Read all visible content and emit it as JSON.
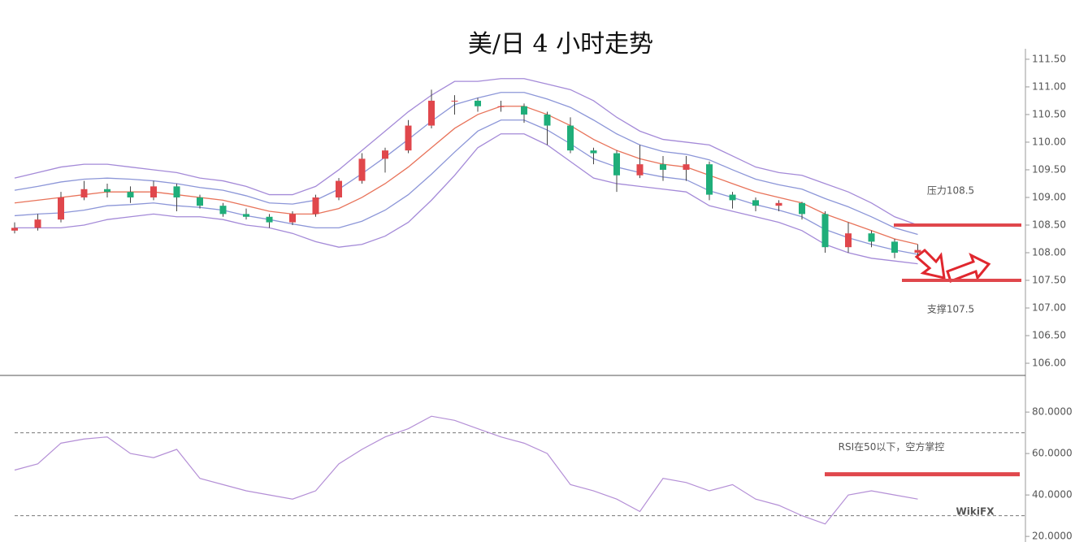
{
  "chart_data": [
    {
      "type": "candlestick",
      "title": "美/日 4 小时走势",
      "up_color": "#e0474c",
      "down_color": "#1fae7a",
      "ohlc": [
        [
          108.4,
          108.55,
          108.35,
          108.45
        ],
        [
          108.45,
          108.7,
          108.4,
          108.6
        ],
        [
          108.6,
          109.1,
          108.55,
          109.0
        ],
        [
          109.0,
          109.3,
          108.95,
          109.15
        ],
        [
          109.15,
          109.25,
          109.0,
          109.1
        ],
        [
          109.1,
          109.2,
          108.9,
          109.0
        ],
        [
          109.0,
          109.3,
          108.95,
          109.2
        ],
        [
          109.2,
          109.25,
          108.75,
          109.0
        ],
        [
          109.0,
          109.05,
          108.8,
          108.85
        ],
        [
          108.85,
          108.9,
          108.65,
          108.7
        ],
        [
          108.7,
          108.8,
          108.6,
          108.65
        ],
        [
          108.65,
          108.7,
          108.45,
          108.55
        ],
        [
          108.55,
          108.75,
          108.5,
          108.7
        ],
        [
          108.7,
          109.05,
          108.65,
          109.0
        ],
        [
          109.0,
          109.35,
          108.95,
          109.3
        ],
        [
          109.3,
          109.8,
          109.25,
          109.7
        ],
        [
          109.7,
          109.9,
          109.45,
          109.85
        ],
        [
          109.85,
          110.4,
          109.8,
          110.3
        ],
        [
          110.3,
          110.95,
          110.25,
          110.75
        ],
        [
          110.75,
          110.85,
          110.5,
          110.75
        ],
        [
          110.75,
          110.8,
          110.55,
          110.65
        ],
        [
          110.65,
          110.75,
          110.55,
          110.65
        ],
        [
          110.65,
          110.7,
          110.35,
          110.5
        ],
        [
          110.5,
          110.55,
          109.95,
          110.3
        ],
        [
          110.3,
          110.45,
          109.8,
          109.85
        ],
        [
          109.85,
          109.9,
          109.6,
          109.8
        ],
        [
          109.8,
          109.85,
          109.1,
          109.4
        ],
        [
          109.4,
          109.95,
          109.35,
          109.6
        ],
        [
          109.6,
          109.75,
          109.3,
          109.5
        ],
        [
          109.5,
          109.75,
          109.3,
          109.6
        ],
        [
          109.6,
          109.65,
          108.95,
          109.05
        ],
        [
          109.05,
          109.1,
          108.8,
          108.95
        ],
        [
          108.95,
          109.0,
          108.75,
          108.85
        ],
        [
          108.85,
          108.95,
          108.75,
          108.9
        ],
        [
          108.9,
          108.92,
          108.6,
          108.7
        ],
        [
          108.7,
          108.75,
          108.0,
          108.1
        ],
        [
          108.1,
          108.55,
          108.0,
          108.35
        ],
        [
          108.35,
          108.4,
          108.1,
          108.2
        ],
        [
          108.2,
          108.25,
          107.9,
          108.0
        ],
        [
          108.0,
          108.15,
          107.95,
          108.05
        ]
      ],
      "bands": [
        {
          "color": "#a48ad8",
          "values": [
            109.35,
            109.45,
            109.55,
            109.6,
            109.6,
            109.55,
            109.5,
            109.45,
            109.35,
            109.3,
            109.2,
            109.05,
            109.05,
            109.2,
            109.5,
            109.85,
            110.2,
            110.55,
            110.85,
            111.1,
            111.1,
            111.15,
            111.15,
            111.05,
            110.95,
            110.75,
            110.45,
            110.2,
            110.05,
            110.0,
            109.95,
            109.75,
            109.55,
            109.45,
            109.4,
            109.25,
            109.1,
            108.9,
            108.65,
            108.5
          ]
        },
        {
          "color": "#8c96d8",
          "values": [
            109.13,
            109.2,
            109.28,
            109.33,
            109.35,
            109.33,
            109.3,
            109.25,
            109.18,
            109.13,
            109.03,
            108.9,
            108.88,
            108.95,
            109.15,
            109.43,
            109.73,
            110.05,
            110.38,
            110.68,
            110.8,
            110.9,
            110.9,
            110.78,
            110.63,
            110.4,
            110.15,
            109.95,
            109.83,
            109.78,
            109.68,
            109.5,
            109.33,
            109.23,
            109.15,
            108.98,
            108.83,
            108.65,
            108.45,
            108.33
          ]
        },
        {
          "color": "#e8735a",
          "values": [
            108.9,
            108.95,
            109.0,
            109.05,
            109.1,
            109.1,
            109.1,
            109.05,
            109.0,
            108.95,
            108.85,
            108.75,
            108.7,
            108.7,
            108.8,
            109.0,
            109.25,
            109.55,
            109.9,
            110.25,
            110.5,
            110.65,
            110.65,
            110.5,
            110.3,
            110.05,
            109.85,
            109.7,
            109.6,
            109.55,
            109.4,
            109.25,
            109.1,
            109.0,
            108.9,
            108.7,
            108.55,
            108.4,
            108.25,
            108.15
          ]
        },
        {
          "color": "#8c96d8",
          "values": [
            108.67,
            108.7,
            108.72,
            108.77,
            108.85,
            108.87,
            108.9,
            108.85,
            108.82,
            108.77,
            108.67,
            108.6,
            108.52,
            108.45,
            108.45,
            108.57,
            108.77,
            109.05,
            109.42,
            109.82,
            110.2,
            110.4,
            110.4,
            110.22,
            109.97,
            109.7,
            109.55,
            109.45,
            109.37,
            109.32,
            109.12,
            109.0,
            108.87,
            108.77,
            108.65,
            108.42,
            108.27,
            108.15,
            108.05,
            107.97
          ]
        },
        {
          "color": "#a48ad8",
          "values": [
            108.45,
            108.45,
            108.45,
            108.5,
            108.6,
            108.65,
            108.7,
            108.65,
            108.65,
            108.6,
            108.5,
            108.45,
            108.35,
            108.2,
            108.1,
            108.15,
            108.3,
            108.55,
            108.95,
            109.4,
            109.9,
            110.15,
            110.15,
            109.95,
            109.65,
            109.35,
            109.25,
            109.2,
            109.15,
            109.1,
            108.85,
            108.75,
            108.65,
            108.55,
            108.4,
            108.15,
            108.0,
            107.9,
            107.85,
            107.8
          ]
        }
      ],
      "ylim": [
        105.78,
        111.69
      ],
      "yticks": [
        {
          "value": 106,
          "label": "106.00"
        },
        {
          "value": 106.5,
          "label": "106.50"
        },
        {
          "value": 107,
          "label": "107.00"
        },
        {
          "value": 107.5,
          "label": "107.50"
        },
        {
          "value": 108,
          "label": "108.00"
        },
        {
          "value": 108.5,
          "label": "108.50"
        },
        {
          "value": 109,
          "label": "109.00"
        },
        {
          "value": 109.5,
          "label": "109.50"
        },
        {
          "value": 110,
          "label": "110.00"
        },
        {
          "value": 110.5,
          "label": "110.50"
        },
        {
          "value": 111,
          "label": "111.00"
        },
        {
          "value": 111.5,
          "label": "111.50"
        }
      ],
      "annotations": [
        {
          "text": "压力108.5",
          "value": 108.5,
          "color": "#e0474c"
        },
        {
          "text": "支撑107.5",
          "value": 107.5,
          "color": "#e0474c"
        }
      ]
    },
    {
      "type": "line",
      "color": "#b48fd6",
      "values": [
        52,
        55,
        65,
        67,
        68,
        60,
        58,
        62,
        48,
        45,
        42,
        40,
        38,
        42,
        55,
        62,
        68,
        72,
        78,
        76,
        72,
        68,
        65,
        60,
        45,
        42,
        38,
        32,
        48,
        46,
        42,
        45,
        38,
        35,
        30,
        26,
        40,
        42,
        40,
        38
      ],
      "ylim": [
        17.3,
        97.3
      ],
      "yticks": [
        {
          "value": 20,
          "label": "20.0000"
        },
        {
          "value": 40,
          "label": "40.0000"
        },
        {
          "value": 60,
          "label": "60.0000"
        },
        {
          "value": 80,
          "label": "80.0000"
        }
      ],
      "reference_lines": [
        70,
        30
      ],
      "annotations": [
        {
          "text": "RSI在50以下，空方掌控",
          "value": 50,
          "color": "#e0474c"
        }
      ],
      "watermark": "WikiFX"
    }
  ]
}
